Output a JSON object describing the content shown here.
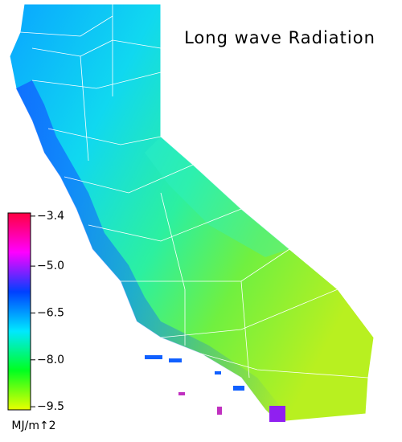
{
  "title": "Long wave Radiation",
  "colorbar": {
    "unit": "MJ/m↑2",
    "clim": [
      -9.6,
      -3.3
    ],
    "ticks": [
      {
        "value": -3.4,
        "label": "−3.4"
      },
      {
        "value": -5.0,
        "label": "−5.0"
      },
      {
        "value": -6.5,
        "label": "−6.5"
      },
      {
        "value": -8.0,
        "label": "−8.0"
      },
      {
        "value": -9.5,
        "label": "−9.5"
      }
    ],
    "colors": [
      "#e8ff00",
      "#00ff20",
      "#00e8ff",
      "#0040ff",
      "#ff00ff",
      "#ff0040"
    ]
  }
}
